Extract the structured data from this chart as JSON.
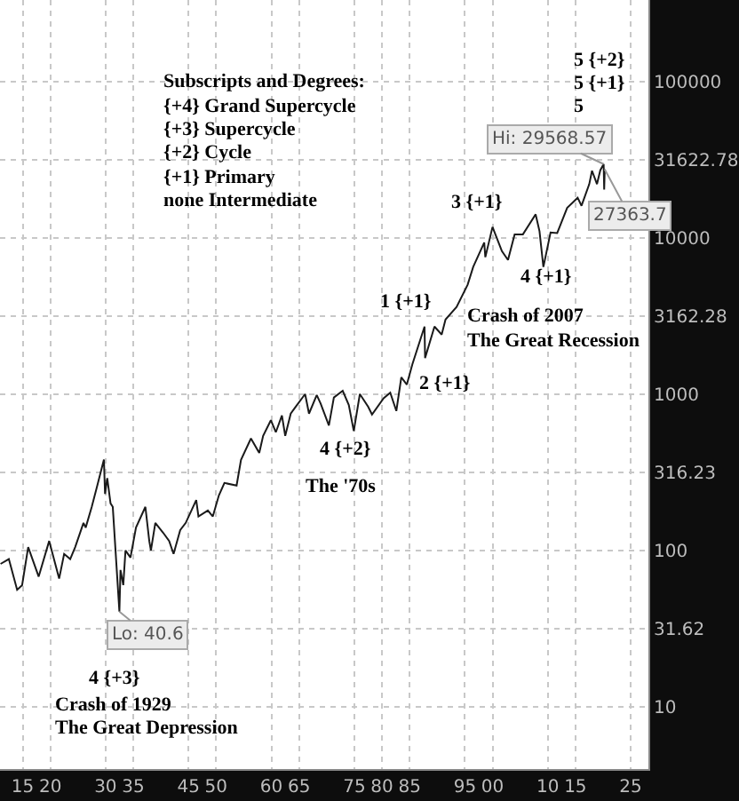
{
  "chart_data": {
    "type": "line",
    "log": "y",
    "grid": true,
    "x": [
      1911.0,
      1912.5,
      1914.0,
      1914.9,
      1916.0,
      1917.9,
      1919.8,
      1921.6,
      1922.5,
      1923.6,
      1924.5,
      1926.0,
      1926.4,
      1927.5,
      1928.5,
      1929.7,
      1929.9,
      1930.3,
      1930.9,
      1931.3,
      1931.8,
      1932.5,
      1932.7,
      1933.2,
      1933.6,
      1934.5,
      1935.5,
      1937.2,
      1937.9,
      1938.2,
      1939.0,
      1940.4,
      1941.5,
      1942.3,
      1943.5,
      1944.5,
      1946.4,
      1946.8,
      1948.5,
      1949.4,
      1950.5,
      1951.5,
      1953.7,
      1954.5,
      1956.3,
      1957.8,
      1958.5,
      1959.9,
      1960.8,
      1961.9,
      1962.5,
      1963.5,
      1964.5,
      1966.1,
      1966.8,
      1968.2,
      1968.9,
      1970.4,
      1971.3,
      1972.9,
      1974.0,
      1974.9,
      1976.0,
      1977.5,
      1978.2,
      1980.3,
      1981.5,
      1982.6,
      1983.5,
      1984.5,
      1985.5,
      1987.7,
      1987.8,
      1989.5,
      1990.8,
      1991.5,
      1993.5,
      1995.5,
      1996.5,
      1998.5,
      1998.7,
      2000.0,
      2001.7,
      2002.8,
      2004.0,
      2005.5,
      2007.8,
      2008.5,
      2009.2,
      2010.5,
      2011.7,
      2013.5,
      2015.4,
      2016.1,
      2017.5,
      2018.0,
      2018.9,
      2019.5,
      2020.1,
      2020.2,
      2020.3
    ],
    "series": [
      {
        "color": "#1a1a1a",
        "values": [
          82,
          88,
          56,
          60,
          105,
          68,
          115,
          66,
          95,
          88,
          105,
          150,
          140,
          190,
          260,
          381,
          230,
          290,
          200,
          190,
          100,
          40.6,
          75,
          60,
          100,
          90,
          140,
          190,
          115,
          100,
          150,
          130,
          115,
          95,
          135,
          150,
          210,
          165,
          180,
          165,
          225,
          270,
          260,
          380,
          520,
          420,
          540,
          680,
          570,
          730,
          540,
          750,
          840,
          1000,
          750,
          985,
          870,
          630,
          950,
          1050,
          850,
          580,
          1000,
          830,
          740,
          940,
          1020,
          780,
          1280,
          1150,
          1550,
          2700,
          1700,
          2700,
          2400,
          3000,
          3600,
          5000,
          6500,
          9300,
          7500,
          11700,
          8200,
          7200,
          10500,
          10500,
          14100,
          11000,
          6500,
          10800,
          10700,
          15500,
          18000,
          16000,
          22000,
          26800,
          22000,
          27000,
          29568.57,
          20300,
          27363.7
        ]
      }
    ],
    "xlim": [
      1910.9,
      2028.2
    ],
    "xticks": [
      {
        "value": 1915,
        "label": "15"
      },
      {
        "value": 1920,
        "label": "20"
      },
      {
        "value": 1930,
        "label": "30"
      },
      {
        "value": 1935,
        "label": "35"
      },
      {
        "value": 1945,
        "label": "45"
      },
      {
        "value": 1950,
        "label": "50"
      },
      {
        "value": 1960,
        "label": "60"
      },
      {
        "value": 1965,
        "label": "65"
      },
      {
        "value": 1975,
        "label": "75"
      },
      {
        "value": 1980,
        "label": "80"
      },
      {
        "value": 1985,
        "label": "85"
      },
      {
        "value": 1995,
        "label": "95"
      },
      {
        "value": 2000,
        "label": "00"
      },
      {
        "value": 2010,
        "label": "10"
      },
      {
        "value": 2015,
        "label": "15"
      },
      {
        "value": 2025,
        "label": "25"
      }
    ],
    "ylim": [
      4,
      331000
    ],
    "yticks": [
      10,
      31.62,
      100,
      316.23,
      1000,
      3162.28,
      10000,
      31622.78,
      100000
    ],
    "annotations": [
      "Subscripts and Degrees:",
      "{+4} Grand Supercycle",
      "{+3} Supercycle",
      "{+2} Cycle",
      "{+1} Primary",
      "none Intermediate",
      "5 {+2}",
      "5 {+1}",
      "5",
      "3 {+1}",
      "4 {+1}",
      "Crash of 2007",
      "The Great Recession",
      "1 {+1}",
      "2 {+1}",
      "4 {+2}",
      "The '70s",
      "4 {+3}",
      "Crash of 1929",
      "The Great Depression",
      {
        "text": "Hi: 29568.57",
        "x": 2020.1,
        "y": 29568.57
      },
      {
        "text": "Lo: 40.6",
        "x": 1932.5,
        "y": 40.6
      },
      {
        "text": "27363.7",
        "x": 2020.3,
        "y": 27363.7
      }
    ]
  }
}
